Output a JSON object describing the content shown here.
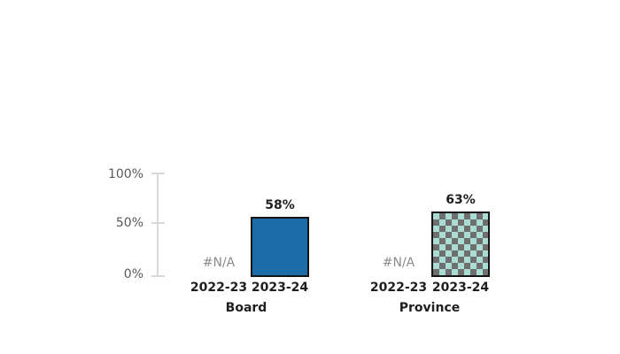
{
  "chart_data": {
    "type": "bar",
    "title": "",
    "xlabel": "",
    "ylabel": "",
    "categories": [
      "2022-23",
      "2023-24"
    ],
    "series": [
      {
        "name": "Board",
        "values": [
          null,
          58
        ],
        "labels": [
          "#N/A",
          "58%"
        ],
        "fill": "#1b6ca8",
        "pattern": "solid"
      },
      {
        "name": "Province",
        "values": [
          null,
          63
        ],
        "labels": [
          "#N/A",
          "63%"
        ],
        "fill": "#a9ddd3",
        "pattern": "checkerboard",
        "pattern_color": "#6f6f6f"
      }
    ],
    "ylim": [
      0,
      100
    ],
    "ytick_labels": [
      "100%",
      "50%",
      "0%"
    ],
    "grid": false,
    "legend": false,
    "colors": {
      "bar_border": "#141414",
      "axis_line": "#d9d9d9",
      "ytick_text": "#595959",
      "na_text": "#8c8c8c",
      "label_text": "#1f1f1f"
    }
  }
}
